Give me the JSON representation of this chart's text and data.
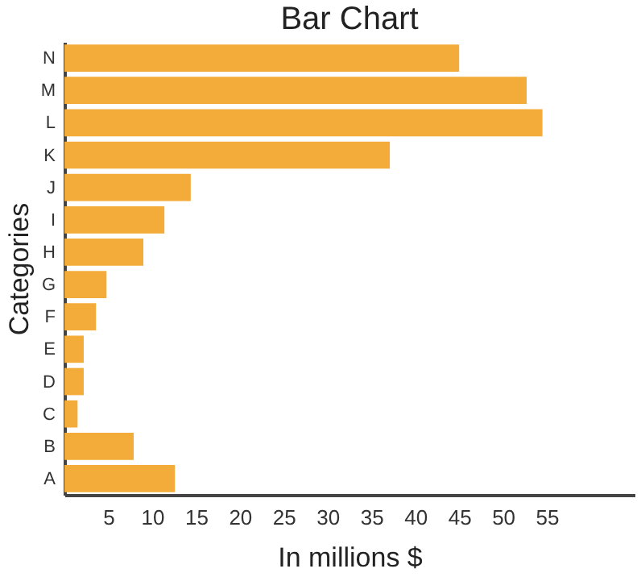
{
  "chart_data": {
    "type": "bar",
    "orientation": "horizontal",
    "title": "Bar Chart",
    "xlabel": "In millions $",
    "ylabel": "Categories",
    "categories": [
      "N",
      "M",
      "L",
      "K",
      "J",
      "I",
      "H",
      "G",
      "F",
      "E",
      "D",
      "C",
      "B",
      "A"
    ],
    "values": [
      45,
      52.7,
      54.5,
      37.1,
      14.4,
      11.4,
      9,
      4.8,
      3.6,
      2.2,
      2.2,
      1.5,
      7.9,
      12.6
    ],
    "color": "#f3ac3a",
    "xlim": [
      0,
      65
    ],
    "xticks": [
      5,
      10,
      15,
      20,
      25,
      30,
      35,
      40,
      45,
      50,
      55
    ],
    "grid": false
  }
}
